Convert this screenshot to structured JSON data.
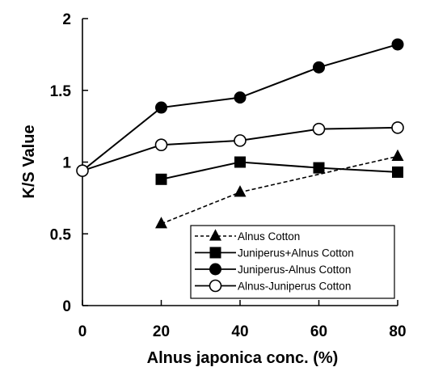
{
  "chart_data": {
    "type": "line",
    "title": "",
    "xlabel": "Alnus japonica  conc. (%)",
    "ylabel": "K/S Value",
    "xlim": [
      0,
      80
    ],
    "ylim": [
      0,
      2
    ],
    "xticks": [
      0,
      20,
      40,
      60,
      80
    ],
    "yticks": [
      0,
      0.5,
      1,
      1.5,
      2
    ],
    "xtick_labels": [
      "0",
      "20",
      "40",
      "60",
      "80"
    ],
    "ytick_labels": [
      "0",
      "0.5",
      "1",
      "1.5",
      "2"
    ],
    "grid": false,
    "legend_position": "bottom-right",
    "series": [
      {
        "name": "Alnus Cotton",
        "marker": "triangle",
        "line_style": "dashed",
        "color": "#000000",
        "x": [
          20,
          40,
          80
        ],
        "y": [
          0.57,
          0.79,
          1.04
        ]
      },
      {
        "name": "Juniperus+Alnus Cotton",
        "marker": "square",
        "line_style": "solid",
        "color": "#000000",
        "x": [
          20,
          40,
          60,
          80
        ],
        "y": [
          0.88,
          1.0,
          0.96,
          0.93
        ]
      },
      {
        "name": "Juniperus-Alnus Cotton",
        "marker": "circle-filled",
        "line_style": "solid",
        "color": "#000000",
        "x": [
          0,
          20,
          40,
          60,
          80
        ],
        "y": [
          0.94,
          1.38,
          1.45,
          1.66,
          1.82
        ]
      },
      {
        "name": "Alnus-Juniperus Cotton",
        "marker": "circle-open",
        "line_style": "solid",
        "color": "#000000",
        "x": [
          0,
          20,
          40,
          60,
          80
        ],
        "y": [
          0.94,
          1.12,
          1.15,
          1.23,
          1.24
        ]
      }
    ]
  }
}
